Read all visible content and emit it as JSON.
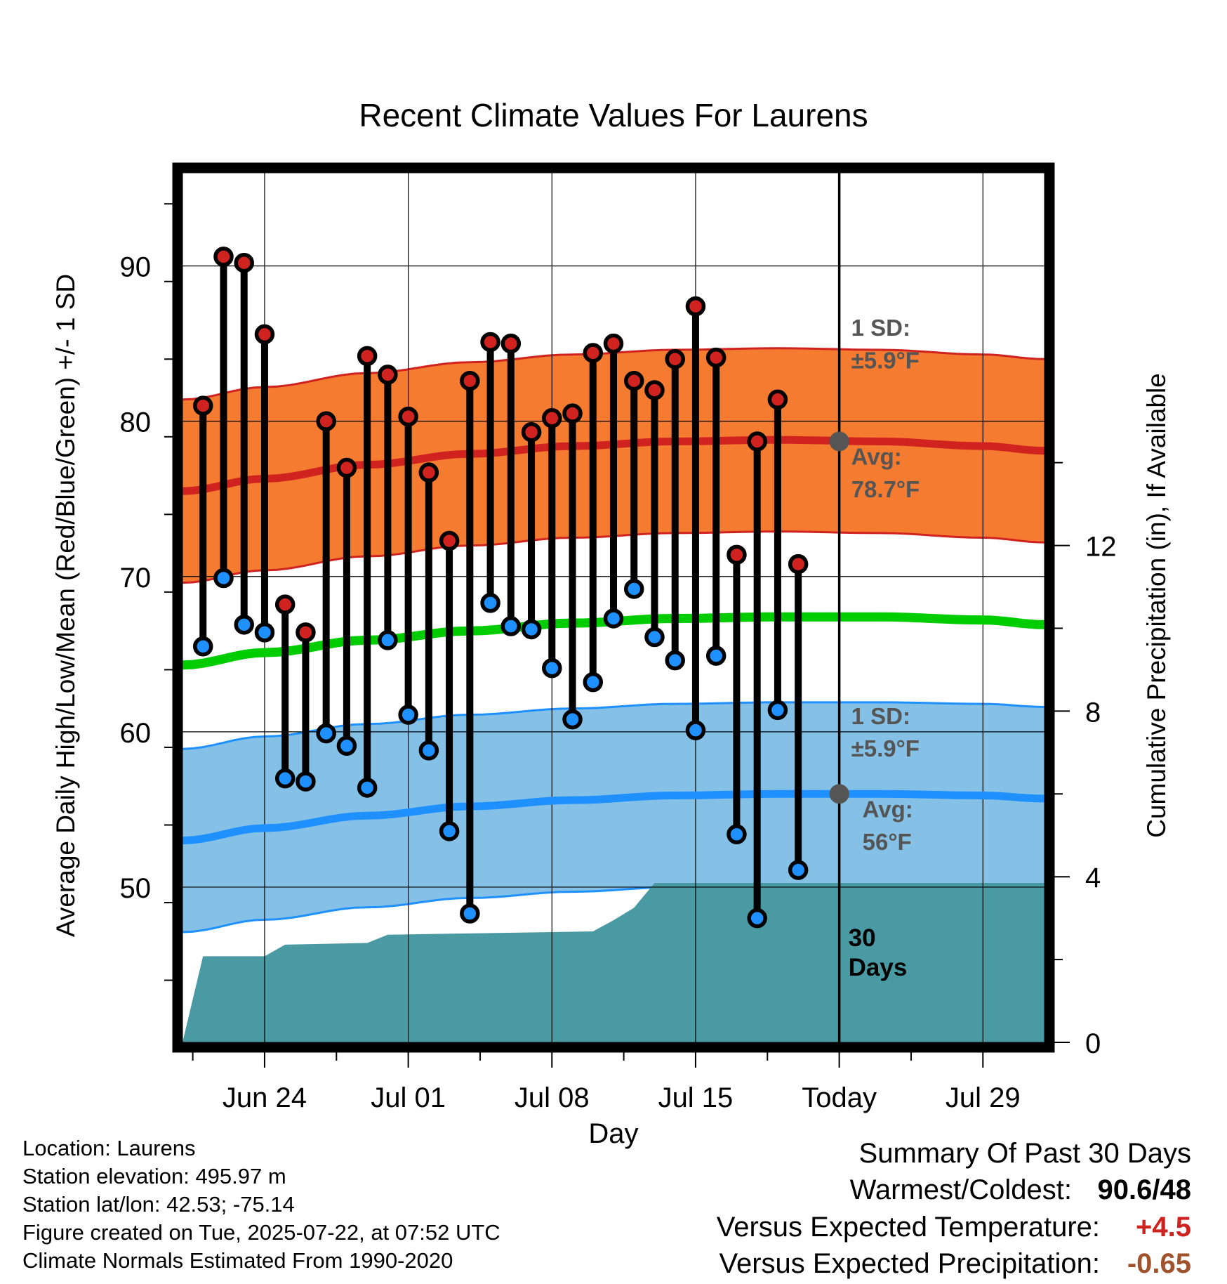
{
  "chart_data": {
    "type": "line",
    "title": "Recent Climate Values For Laurens",
    "xlabel": "Day",
    "ylabel": "Average Daily High/Low/Mean (Red/Blue/Green) +/- 1 SD",
    "y2label": "Cumulative Precipitation (in), If Available",
    "ylim": [
      40,
      96
    ],
    "y2lim": [
      0,
      21
    ],
    "xlim": [
      "2025-06-20",
      "2025-08-01"
    ],
    "yticks": [
      50,
      60,
      70,
      80,
      90
    ],
    "y2ticks": [
      0,
      4,
      8,
      12
    ],
    "xticks": [
      {
        "date": "2025-06-24",
        "label": "Jun 24"
      },
      {
        "date": "2025-07-01",
        "label": "Jul 01"
      },
      {
        "date": "2025-07-08",
        "label": "Jul 08"
      },
      {
        "date": "2025-07-15",
        "label": "Jul 15"
      },
      {
        "date": "2025-07-22",
        "label": "Today"
      },
      {
        "date": "2025-07-29",
        "label": "Jul 29"
      }
    ],
    "grid": true,
    "daily_observations": {
      "dates": [
        "2025-06-21",
        "2025-06-22",
        "2025-06-23",
        "2025-06-24",
        "2025-06-25",
        "2025-06-26",
        "2025-06-27",
        "2025-06-28",
        "2025-06-29",
        "2025-06-30",
        "2025-07-01",
        "2025-07-02",
        "2025-07-03",
        "2025-07-04",
        "2025-07-05",
        "2025-07-06",
        "2025-07-07",
        "2025-07-08",
        "2025-07-09",
        "2025-07-10",
        "2025-07-11",
        "2025-07-12",
        "2025-07-13",
        "2025-07-14",
        "2025-07-15",
        "2025-07-16",
        "2025-07-17",
        "2025-07-18",
        "2025-07-19",
        "2025-07-20",
        "2025-07-21"
      ],
      "high": [
        81.0,
        90.6,
        90.2,
        85.6,
        68.2,
        66.4,
        80.0,
        77.0,
        84.2,
        83.0,
        80.3,
        76.7,
        72.3,
        82.6,
        85.1,
        85.0,
        79.3,
        80.2,
        80.5,
        84.4,
        85.0,
        82.6,
        82.0,
        84.0,
        87.4,
        84.1,
        71.4,
        78.7,
        81.4,
        70.8,
        null
      ],
      "low": [
        65.5,
        69.9,
        66.9,
        66.4,
        57.0,
        56.8,
        59.9,
        59.1,
        56.4,
        65.9,
        61.1,
        58.8,
        53.6,
        48.3,
        68.3,
        66.8,
        66.6,
        64.1,
        60.8,
        63.2,
        67.3,
        69.2,
        66.1,
        64.6,
        60.1,
        64.9,
        53.4,
        48.0,
        61.4,
        51.1,
        null
      ]
    },
    "normals": {
      "dates": [
        "2025-06-20",
        "2025-06-24",
        "2025-06-29",
        "2025-07-04",
        "2025-07-09",
        "2025-07-14",
        "2025-07-19",
        "2025-07-24",
        "2025-07-29",
        "2025-08-01"
      ],
      "high_avg": [
        75.5,
        76.3,
        77.2,
        77.9,
        78.4,
        78.7,
        78.8,
        78.7,
        78.4,
        78.1
      ],
      "low_avg": [
        53.0,
        53.8,
        54.6,
        55.2,
        55.6,
        55.9,
        56.0,
        56.0,
        55.9,
        55.7
      ],
      "mean_avg": [
        64.3,
        65.1,
        65.9,
        66.5,
        67.0,
        67.3,
        67.4,
        67.4,
        67.2,
        66.9
      ],
      "high_sd": 5.9,
      "low_sd": 5.9
    },
    "cumulative_precip": {
      "dates": [
        "2025-06-20",
        "2025-06-21",
        "2025-06-23",
        "2025-06-24",
        "2025-06-25",
        "2025-06-29",
        "2025-06-30",
        "2025-07-10",
        "2025-07-11",
        "2025-07-12",
        "2025-07-13",
        "2025-07-14",
        "2025-08-01"
      ],
      "values": [
        0.0,
        2.08,
        2.08,
        2.08,
        2.36,
        2.4,
        2.6,
        2.68,
        2.95,
        3.25,
        3.85,
        3.85,
        3.85
      ]
    },
    "colors": {
      "high": "#d0231f",
      "low": "#1e90ff",
      "mean": "#00cc00",
      "high_band": "#f47b30",
      "low_band": "#85c1e6",
      "precip": "#4a9aa3",
      "annotation": "#555555"
    },
    "annotations": {
      "high_sd": [
        "1 SD:",
        "±5.9°F"
      ],
      "high_avg": [
        "Avg:",
        "78.7°F"
      ],
      "low_sd": [
        "1 SD:",
        "±5.9°F"
      ],
      "low_avg": [
        "Avg:",
        "56°F"
      ],
      "window": [
        "30",
        "Days"
      ]
    }
  },
  "footer": {
    "location": "Location: Laurens",
    "elevation": "Station elevation: 495.97 m",
    "latlon": "Station lat/lon: 42.53; -75.14",
    "created": "Figure created on Tue, 2025-07-22, at 07:52 UTC",
    "normals": "Climate Normals Estimated From 1990-2020"
  },
  "summary": {
    "title": "Summary Of Past 30 Days",
    "warmest_coldest_label": "Warmest/Coldest:",
    "warmest_coldest_value": "90.6/48",
    "temp_label": "Versus Expected Temperature:",
    "temp_value": "+4.5",
    "temp_color": "#d0231f",
    "precip_label": "Versus Expected Precipitation:",
    "precip_value": "-0.65",
    "precip_color": "#a0522d"
  }
}
